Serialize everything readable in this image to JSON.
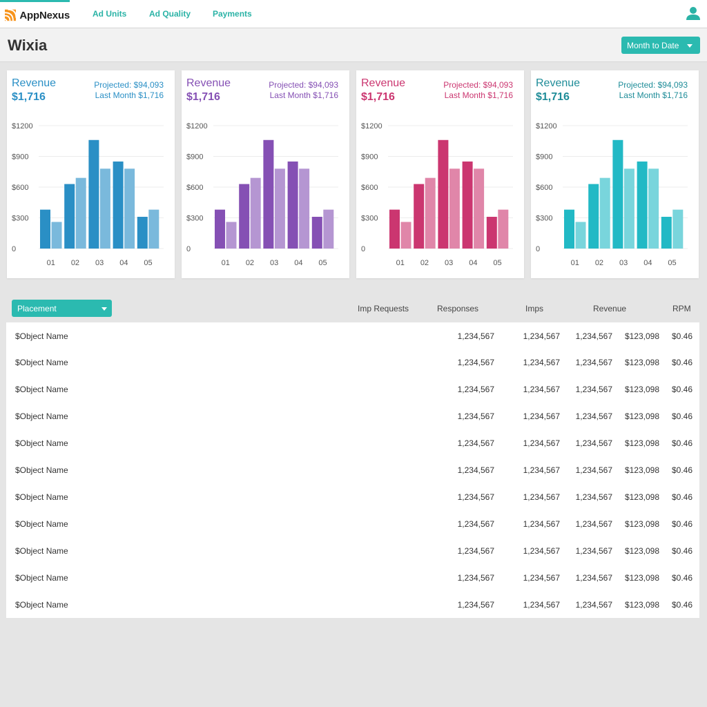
{
  "app": {
    "brand": "AppNexus",
    "nav": [
      "Ad Units",
      "Ad Quality",
      "Payments"
    ],
    "accent": "#2bbab0"
  },
  "page": {
    "title": "Wixia",
    "date_range": "Month to Date"
  },
  "cards": [
    {
      "title": "Revenue",
      "value": "$1,716",
      "projected": "Projected: $94,093",
      "last_month": "Last Month $1,716",
      "color": "#2a8fc5",
      "light": "#7ab9dc",
      "text_color": "#2a8fc5"
    },
    {
      "title": "Revenue",
      "value": "$1,716",
      "projected": "Projected: $94,093",
      "last_month": "Last Month $1,716",
      "color": "#8550b4",
      "light": "#b596d2",
      "text_color": "#8550b4"
    },
    {
      "title": "Revenue",
      "value": "$1,716",
      "projected": "Projected: $94,093",
      "last_month": "Last Month $1,716",
      "color": "#cb3670",
      "light": "#e086a9",
      "text_color": "#cb3670"
    },
    {
      "title": "Revenue",
      "value": "$1,716",
      "projected": "Projected: $94,093",
      "last_month": "Last Month $1,716",
      "color": "#22b9c5",
      "light": "#79d5dc",
      "text_color": "#1e8c98"
    }
  ],
  "chart_data": [
    {
      "type": "bar",
      "categories": [
        "01",
        "02",
        "03",
        "04",
        "05"
      ],
      "y_ticks": [
        "$1200",
        "$900",
        "$600",
        "$300",
        "0"
      ],
      "ylim": [
        0,
        1200
      ],
      "series": [
        {
          "values": [
            380,
            630,
            1060,
            850,
            310
          ]
        },
        {
          "values": [
            260,
            690,
            780,
            780,
            380
          ]
        }
      ]
    },
    {
      "type": "bar",
      "categories": [
        "01",
        "02",
        "03",
        "04",
        "05"
      ],
      "y_ticks": [
        "$1200",
        "$900",
        "$600",
        "$300",
        "0"
      ],
      "ylim": [
        0,
        1200
      ],
      "series": [
        {
          "values": [
            380,
            630,
            1060,
            850,
            310
          ]
        },
        {
          "values": [
            260,
            690,
            780,
            780,
            380
          ]
        }
      ]
    },
    {
      "type": "bar",
      "categories": [
        "01",
        "02",
        "03",
        "04",
        "05"
      ],
      "y_ticks": [
        "$1200",
        "$900",
        "$600",
        "$300",
        "0"
      ],
      "ylim": [
        0,
        1200
      ],
      "series": [
        {
          "values": [
            380,
            630,
            1060,
            850,
            310
          ]
        },
        {
          "values": [
            260,
            690,
            780,
            780,
            380
          ]
        }
      ]
    },
    {
      "type": "bar",
      "categories": [
        "01",
        "02",
        "03",
        "04",
        "05"
      ],
      "y_ticks": [
        "$1200",
        "$900",
        "$600",
        "$300",
        "0"
      ],
      "ylim": [
        0,
        1200
      ],
      "series": [
        {
          "values": [
            380,
            630,
            1060,
            850,
            310
          ]
        },
        {
          "values": [
            260,
            690,
            780,
            780,
            380
          ]
        }
      ]
    }
  ],
  "table": {
    "filter": "Placement",
    "headers": [
      "Imp Requests",
      "Responses",
      "Imps",
      "Revenue",
      "RPM"
    ],
    "rows": [
      [
        "$Object Name",
        "1,234,567",
        "1,234,567",
        "1,234,567",
        "$123,098",
        "$0.46"
      ],
      [
        "$Object Name",
        "1,234,567",
        "1,234,567",
        "1,234,567",
        "$123,098",
        "$0.46"
      ],
      [
        "$Object Name",
        "1,234,567",
        "1,234,567",
        "1,234,567",
        "$123,098",
        "$0.46"
      ],
      [
        "$Object Name",
        "1,234,567",
        "1,234,567",
        "1,234,567",
        "$123,098",
        "$0.46"
      ],
      [
        "$Object Name",
        "1,234,567",
        "1,234,567",
        "1,234,567",
        "$123,098",
        "$0.46"
      ],
      [
        "$Object Name",
        "1,234,567",
        "1,234,567",
        "1,234,567",
        "$123,098",
        "$0.46"
      ],
      [
        "$Object Name",
        "1,234,567",
        "1,234,567",
        "1,234,567",
        "$123,098",
        "$0.46"
      ],
      [
        "$Object Name",
        "1,234,567",
        "1,234,567",
        "1,234,567",
        "$123,098",
        "$0.46"
      ],
      [
        "$Object Name",
        "1,234,567",
        "1,234,567",
        "1,234,567",
        "$123,098",
        "$0.46"
      ],
      [
        "$Object Name",
        "1,234,567",
        "1,234,567",
        "1,234,567",
        "$123,098",
        "$0.46"
      ],
      [
        "$Object Name",
        "1,234,567",
        "1,234,567",
        "1,234,567",
        "$123,098",
        "$0.46"
      ]
    ]
  }
}
